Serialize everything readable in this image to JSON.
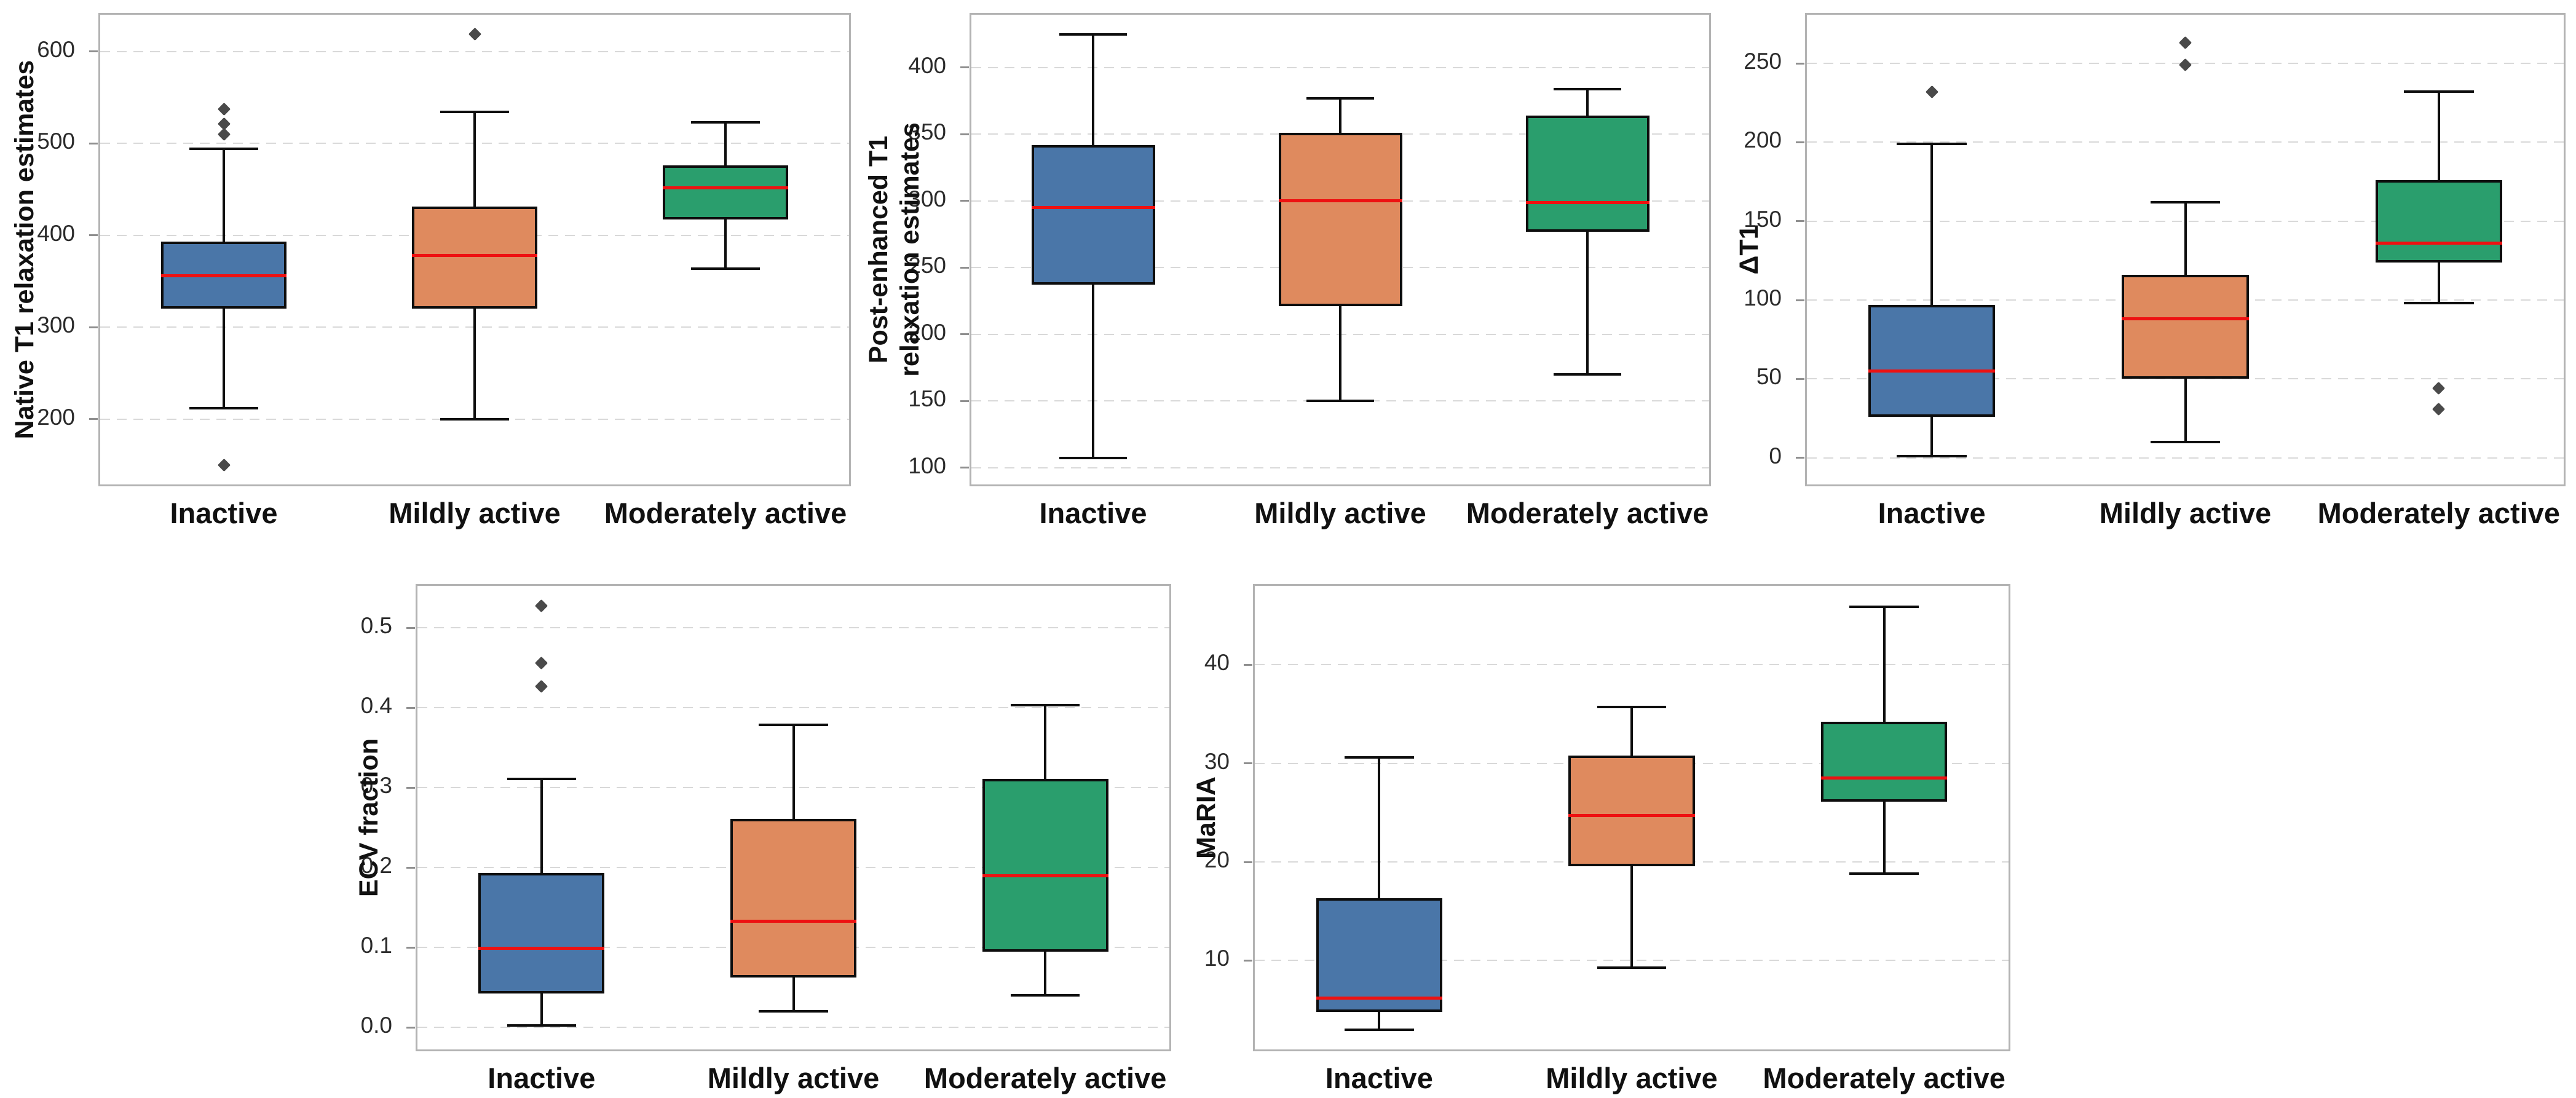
{
  "page": {
    "background": "#ffffff"
  },
  "palette": {
    "box_fill_colors": [
      "#4a76a8",
      "#df8a5e",
      "#2a9e6d"
    ],
    "median_color": "#ee1111",
    "line_color": "#0d0d0d",
    "outlier_color": "#4a4a4a",
    "spine_color": "#b3b3b3",
    "grid_color": "#d9d9d9",
    "text_color": "#111111"
  },
  "chart_data": [
    {
      "id": "native-t1",
      "type": "box",
      "ylabel_lines": [
        "Native T1 relaxation estimates"
      ],
      "categories": [
        "Inactive",
        "Mildly active",
        "Moderately active"
      ],
      "ylim": [
        127,
        642
      ],
      "yticks": [
        200,
        300,
        400,
        500,
        600
      ],
      "ytick_labels": [
        "200",
        "300",
        "400",
        "500",
        "600"
      ],
      "grid": "horizontal-dashed",
      "boxes": [
        {
          "category": "Inactive",
          "whisker_low": 212,
          "q1": 320,
          "median": 356,
          "q3": 393,
          "whisker_high": 494,
          "outliers": [
            537,
            521,
            510,
            150
          ]
        },
        {
          "category": "Mildly active",
          "whisker_low": 200,
          "q1": 320,
          "median": 378,
          "q3": 431,
          "whisker_high": 534,
          "outliers": [
            619
          ]
        },
        {
          "category": "Moderately active",
          "whisker_low": 364,
          "q1": 417,
          "median": 452,
          "q3": 476,
          "whisker_high": 523,
          "outliers": []
        }
      ]
    },
    {
      "id": "post-t1",
      "type": "box",
      "ylabel_lines": [
        "Post-enhanced T1",
        "relaxation estimates"
      ],
      "categories": [
        "Inactive",
        "Mildly active",
        "Moderately active"
      ],
      "ylim": [
        86,
        441
      ],
      "yticks": [
        100,
        150,
        200,
        250,
        300,
        350,
        400
      ],
      "ytick_labels": [
        "100",
        "150",
        "200",
        "250",
        "300",
        "350",
        "400"
      ],
      "grid": "horizontal-dashed",
      "boxes": [
        {
          "category": "Inactive",
          "whisker_low": 107,
          "q1": 237,
          "median": 295,
          "q3": 342,
          "whisker_high": 425,
          "outliers": []
        },
        {
          "category": "Mildly active",
          "whisker_low": 150,
          "q1": 221,
          "median": 300,
          "q3": 351,
          "whisker_high": 377,
          "outliers": []
        },
        {
          "category": "Moderately active",
          "whisker_low": 170,
          "q1": 277,
          "median": 299,
          "q3": 364,
          "whisker_high": 384,
          "outliers": []
        }
      ]
    },
    {
      "id": "delta-t1",
      "type": "box",
      "ylabel_lines": [
        "ΔT1"
      ],
      "categories": [
        "Inactive",
        "Mildly active",
        "Moderately active"
      ],
      "ylim": [
        -18,
        282
      ],
      "yticks": [
        0,
        50,
        100,
        150,
        200,
        250
      ],
      "ytick_labels": [
        "0",
        "50",
        "100",
        "150",
        "200",
        "250"
      ],
      "grid": "horizontal-dashed",
      "boxes": [
        {
          "category": "Inactive",
          "whisker_low": 1,
          "q1": 26,
          "median": 55,
          "q3": 97,
          "whisker_high": 199,
          "outliers": [
            232
          ]
        },
        {
          "category": "Mildly active",
          "whisker_low": 10,
          "q1": 50,
          "median": 88,
          "q3": 116,
          "whisker_high": 162,
          "outliers": [
            263,
            249
          ]
        },
        {
          "category": "Moderately active",
          "whisker_low": 98,
          "q1": 124,
          "median": 136,
          "q3": 176,
          "whisker_high": 232,
          "outliers": [
            44,
            31
          ]
        }
      ]
    },
    {
      "id": "ecv",
      "type": "box",
      "ylabel_lines": [
        "ECV fraction"
      ],
      "categories": [
        "Inactive",
        "Mildly active",
        "Moderately active"
      ],
      "ylim": [
        -0.03,
        0.555
      ],
      "yticks": [
        0.0,
        0.1,
        0.2,
        0.3,
        0.4,
        0.5
      ],
      "ytick_labels": [
        "0.0",
        "0.1",
        "0.2",
        "0.3",
        "0.4",
        "0.5"
      ],
      "grid": "horizontal-dashed",
      "boxes": [
        {
          "category": "Inactive",
          "whisker_low": 0.002,
          "q1": 0.042,
          "median": 0.099,
          "q3": 0.193,
          "whisker_high": 0.311,
          "outliers": [
            0.528,
            0.456,
            0.427
          ]
        },
        {
          "category": "Mildly active",
          "whisker_low": 0.02,
          "q1": 0.062,
          "median": 0.133,
          "q3": 0.261,
          "whisker_high": 0.379,
          "outliers": []
        },
        {
          "category": "Moderately active",
          "whisker_low": 0.04,
          "q1": 0.095,
          "median": 0.19,
          "q3": 0.311,
          "whisker_high": 0.403,
          "outliers": []
        }
      ]
    },
    {
      "id": "maria",
      "type": "box",
      "ylabel_lines": [
        "MaRIA"
      ],
      "categories": [
        "Inactive",
        "Mildly active",
        "Moderately active"
      ],
      "ylim": [
        0.8,
        48.2
      ],
      "yticks": [
        10,
        20,
        30,
        40
      ],
      "ytick_labels": [
        "10",
        "20",
        "30",
        "40"
      ],
      "grid": "horizontal-dashed",
      "boxes": [
        {
          "category": "Inactive",
          "whisker_low": 3.0,
          "q1": 4.8,
          "median": 6.2,
          "q3": 16.3,
          "whisker_high": 30.6,
          "outliers": []
        },
        {
          "category": "Mildly active",
          "whisker_low": 9.3,
          "q1": 19.6,
          "median": 24.7,
          "q3": 30.8,
          "whisker_high": 35.7,
          "outliers": []
        },
        {
          "category": "Moderately active",
          "whisker_low": 18.8,
          "q1": 26.1,
          "median": 28.5,
          "q3": 34.2,
          "whisker_high": 45.9,
          "outliers": []
        }
      ]
    }
  ]
}
